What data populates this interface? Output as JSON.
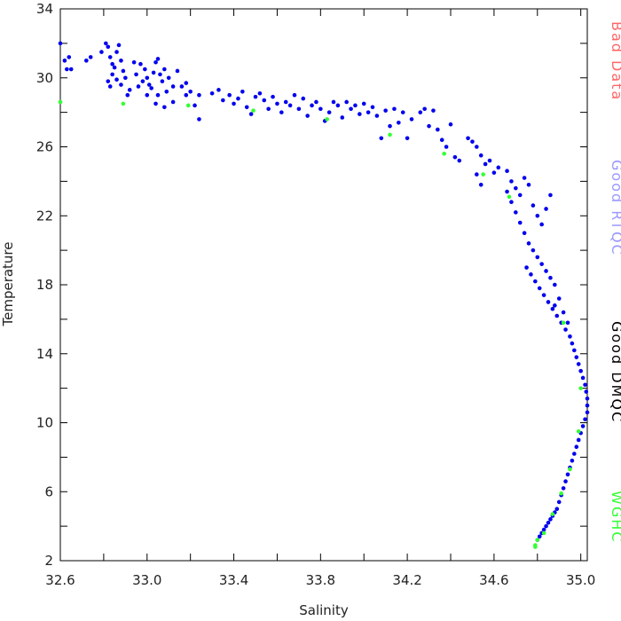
{
  "chart_data": {
    "type": "scatter",
    "title": "",
    "xlabel": "Salinity",
    "ylabel": "Temperature",
    "xlim": [
      32.6,
      35.03
    ],
    "ylim": [
      2,
      34
    ],
    "x_ticks": [
      32.6,
      32.8,
      33.0,
      33.2,
      33.4,
      33.6,
      33.8,
      34.0,
      34.2,
      34.4,
      34.6,
      34.8,
      35.0
    ],
    "x_tick_labels": [
      "32.6",
      "",
      "33.0",
      "",
      "33.4",
      "",
      "33.8",
      "",
      "34.2",
      "",
      "34.6",
      "",
      "35.0"
    ],
    "y_ticks": [
      2,
      4,
      6,
      8,
      10,
      12,
      14,
      16,
      18,
      20,
      22,
      24,
      26,
      28,
      30,
      32,
      34
    ],
    "y_tick_labels": [
      "2",
      "",
      "6",
      "",
      "10",
      "",
      "14",
      "",
      "18",
      "",
      "22",
      "",
      "26",
      "",
      "30",
      "",
      "34"
    ],
    "grid": false,
    "legend_position": "right",
    "legend": [
      {
        "label": "Bad Data",
        "color": "#ff6666"
      },
      {
        "label": "Good RTQC",
        "color": "#9999ff"
      },
      {
        "label": "Good DMQC",
        "color": "#000000"
      },
      {
        "label": "WGHC",
        "color": "#33ff33"
      }
    ],
    "series": [
      {
        "color": "#0000ee",
        "points": [
          [
            32.6,
            32.0
          ],
          [
            32.62,
            31.0
          ],
          [
            32.63,
            30.5
          ],
          [
            32.65,
            30.5
          ],
          [
            32.64,
            31.2
          ],
          [
            32.72,
            31.0
          ],
          [
            32.74,
            31.2
          ],
          [
            32.79,
            31.5
          ],
          [
            32.81,
            32.0
          ],
          [
            32.82,
            31.8
          ],
          [
            32.83,
            31.2
          ],
          [
            32.84,
            30.8
          ],
          [
            32.85,
            30.6
          ],
          [
            32.86,
            31.5
          ],
          [
            32.87,
            31.9
          ],
          [
            32.88,
            31.0
          ],
          [
            32.89,
            30.4
          ],
          [
            32.9,
            30.0
          ],
          [
            32.82,
            29.8
          ],
          [
            32.84,
            30.2
          ],
          [
            32.86,
            29.9
          ],
          [
            32.88,
            29.6
          ],
          [
            32.92,
            29.3
          ],
          [
            32.95,
            30.2
          ],
          [
            32.97,
            30.8
          ],
          [
            32.99,
            30.5
          ],
          [
            33.0,
            30.0
          ],
          [
            33.01,
            29.6
          ],
          [
            33.02,
            29.4
          ],
          [
            33.03,
            30.3
          ],
          [
            33.04,
            30.9
          ],
          [
            33.05,
            31.1
          ],
          [
            33.06,
            30.2
          ],
          [
            33.07,
            29.8
          ],
          [
            33.08,
            30.5
          ],
          [
            33.09,
            29.2
          ],
          [
            33.1,
            30.0
          ],
          [
            33.12,
            29.5
          ],
          [
            33.14,
            30.4
          ],
          [
            33.16,
            29.5
          ],
          [
            33.18,
            29.0
          ],
          [
            33.2,
            29.2
          ],
          [
            33.22,
            28.4
          ],
          [
            33.24,
            29.0
          ],
          [
            33.0,
            29.0
          ],
          [
            33.04,
            28.5
          ],
          [
            33.08,
            28.3
          ],
          [
            33.12,
            28.6
          ],
          [
            32.98,
            29.8
          ],
          [
            33.05,
            29.0
          ],
          [
            32.94,
            30.9
          ],
          [
            32.96,
            29.5
          ],
          [
            32.91,
            29.0
          ],
          [
            32.83,
            29.5
          ],
          [
            33.18,
            29.7
          ],
          [
            33.24,
            27.6
          ],
          [
            33.3,
            29.1
          ],
          [
            33.33,
            29.3
          ],
          [
            33.35,
            28.7
          ],
          [
            33.38,
            29.0
          ],
          [
            33.4,
            28.5
          ],
          [
            33.42,
            28.8
          ],
          [
            33.44,
            29.2
          ],
          [
            33.46,
            28.3
          ],
          [
            33.48,
            27.9
          ],
          [
            33.5,
            28.9
          ],
          [
            33.52,
            29.1
          ],
          [
            33.54,
            28.7
          ],
          [
            33.56,
            28.2
          ],
          [
            33.58,
            28.9
          ],
          [
            33.6,
            28.5
          ],
          [
            33.62,
            28.0
          ],
          [
            33.64,
            28.6
          ],
          [
            33.66,
            28.4
          ],
          [
            33.68,
            29.0
          ],
          [
            33.7,
            28.2
          ],
          [
            33.72,
            28.8
          ],
          [
            33.74,
            27.8
          ],
          [
            33.76,
            28.4
          ],
          [
            33.78,
            28.6
          ],
          [
            33.8,
            28.2
          ],
          [
            33.82,
            27.5
          ],
          [
            33.84,
            28.0
          ],
          [
            33.86,
            28.6
          ],
          [
            33.88,
            28.4
          ],
          [
            33.9,
            27.7
          ],
          [
            33.92,
            28.6
          ],
          [
            33.94,
            28.2
          ],
          [
            33.96,
            28.4
          ],
          [
            33.98,
            27.9
          ],
          [
            34.0,
            28.5
          ],
          [
            34.02,
            28.0
          ],
          [
            34.04,
            28.3
          ],
          [
            34.06,
            27.8
          ],
          [
            34.08,
            26.5
          ],
          [
            34.1,
            28.1
          ],
          [
            34.12,
            27.2
          ],
          [
            34.14,
            28.2
          ],
          [
            34.16,
            27.4
          ],
          [
            34.18,
            28.0
          ],
          [
            34.2,
            26.5
          ],
          [
            34.22,
            27.6
          ],
          [
            34.26,
            28.0
          ],
          [
            34.28,
            28.2
          ],
          [
            34.3,
            27.2
          ],
          [
            34.32,
            28.1
          ],
          [
            34.34,
            27.0
          ],
          [
            34.36,
            26.4
          ],
          [
            34.38,
            26.0
          ],
          [
            34.4,
            27.3
          ],
          [
            34.42,
            25.4
          ],
          [
            34.44,
            25.2
          ],
          [
            34.48,
            26.5
          ],
          [
            34.5,
            26.3
          ],
          [
            34.52,
            26.0
          ],
          [
            34.54,
            25.5
          ],
          [
            34.56,
            25.0
          ],
          [
            34.58,
            25.2
          ],
          [
            34.6,
            24.5
          ],
          [
            34.62,
            24.8
          ],
          [
            34.52,
            24.4
          ],
          [
            34.54,
            23.8
          ],
          [
            34.66,
            24.6
          ],
          [
            34.68,
            24.0
          ],
          [
            34.7,
            23.6
          ],
          [
            34.72,
            23.2
          ],
          [
            34.74,
            24.2
          ],
          [
            34.76,
            23.8
          ],
          [
            34.78,
            22.6
          ],
          [
            34.8,
            22.0
          ],
          [
            34.82,
            21.5
          ],
          [
            34.84,
            22.4
          ],
          [
            34.86,
            23.2
          ],
          [
            34.66,
            23.4
          ],
          [
            34.68,
            22.8
          ],
          [
            34.7,
            22.2
          ],
          [
            34.72,
            21.6
          ],
          [
            34.74,
            21.0
          ],
          [
            34.76,
            20.4
          ],
          [
            34.78,
            20.0
          ],
          [
            34.8,
            19.6
          ],
          [
            34.82,
            19.2
          ],
          [
            34.84,
            18.8
          ],
          [
            34.86,
            18.4
          ],
          [
            34.88,
            18.0
          ],
          [
            34.75,
            19.0
          ],
          [
            34.77,
            18.6
          ],
          [
            34.79,
            18.2
          ],
          [
            34.81,
            17.8
          ],
          [
            34.83,
            17.4
          ],
          [
            34.85,
            17.0
          ],
          [
            34.87,
            16.6
          ],
          [
            34.89,
            16.2
          ],
          [
            34.91,
            15.8
          ],
          [
            34.93,
            15.4
          ],
          [
            34.88,
            16.8
          ],
          [
            34.9,
            17.2
          ],
          [
            34.92,
            16.4
          ],
          [
            34.94,
            15.8
          ],
          [
            34.95,
            15.0
          ],
          [
            34.96,
            14.6
          ],
          [
            34.97,
            14.2
          ],
          [
            34.98,
            13.8
          ],
          [
            34.99,
            13.4
          ],
          [
            35.0,
            13.0
          ],
          [
            35.01,
            12.6
          ],
          [
            35.02,
            12.2
          ],
          [
            35.025,
            11.8
          ],
          [
            35.03,
            11.4
          ],
          [
            35.03,
            11.0
          ],
          [
            35.03,
            10.6
          ],
          [
            35.02,
            10.2
          ],
          [
            35.01,
            9.8
          ],
          [
            35.0,
            9.4
          ],
          [
            34.99,
            9.0
          ],
          [
            34.98,
            8.6
          ],
          [
            34.97,
            8.2
          ],
          [
            34.96,
            7.8
          ],
          [
            34.95,
            7.4
          ],
          [
            34.94,
            7.0
          ],
          [
            34.93,
            6.6
          ],
          [
            34.92,
            6.2
          ],
          [
            34.91,
            5.8
          ],
          [
            34.9,
            5.4
          ],
          [
            34.89,
            5.0
          ],
          [
            34.88,
            4.8
          ],
          [
            34.87,
            4.6
          ],
          [
            34.86,
            4.4
          ],
          [
            34.85,
            4.2
          ],
          [
            34.84,
            4.0
          ],
          [
            34.83,
            3.8
          ],
          [
            34.82,
            3.6
          ],
          [
            34.81,
            3.4
          ],
          [
            34.8,
            3.2
          ]
        ]
      },
      {
        "color": "#33ff33",
        "points": [
          [
            32.6,
            28.6
          ],
          [
            32.89,
            28.5
          ],
          [
            33.19,
            28.4
          ],
          [
            33.49,
            28.1
          ],
          [
            33.83,
            27.6
          ],
          [
            34.12,
            26.7
          ],
          [
            34.37,
            25.6
          ],
          [
            34.55,
            24.4
          ],
          [
            34.67,
            23.1
          ],
          [
            34.92,
            15.8
          ],
          [
            35.0,
            12.0
          ],
          [
            34.99,
            9.5
          ],
          [
            34.95,
            7.3
          ],
          [
            34.91,
            5.9
          ],
          [
            34.87,
            4.7
          ],
          [
            34.83,
            3.6
          ],
          [
            34.8,
            3.2
          ],
          [
            34.79,
            2.9
          ],
          [
            34.79,
            2.8
          ]
        ]
      }
    ]
  }
}
